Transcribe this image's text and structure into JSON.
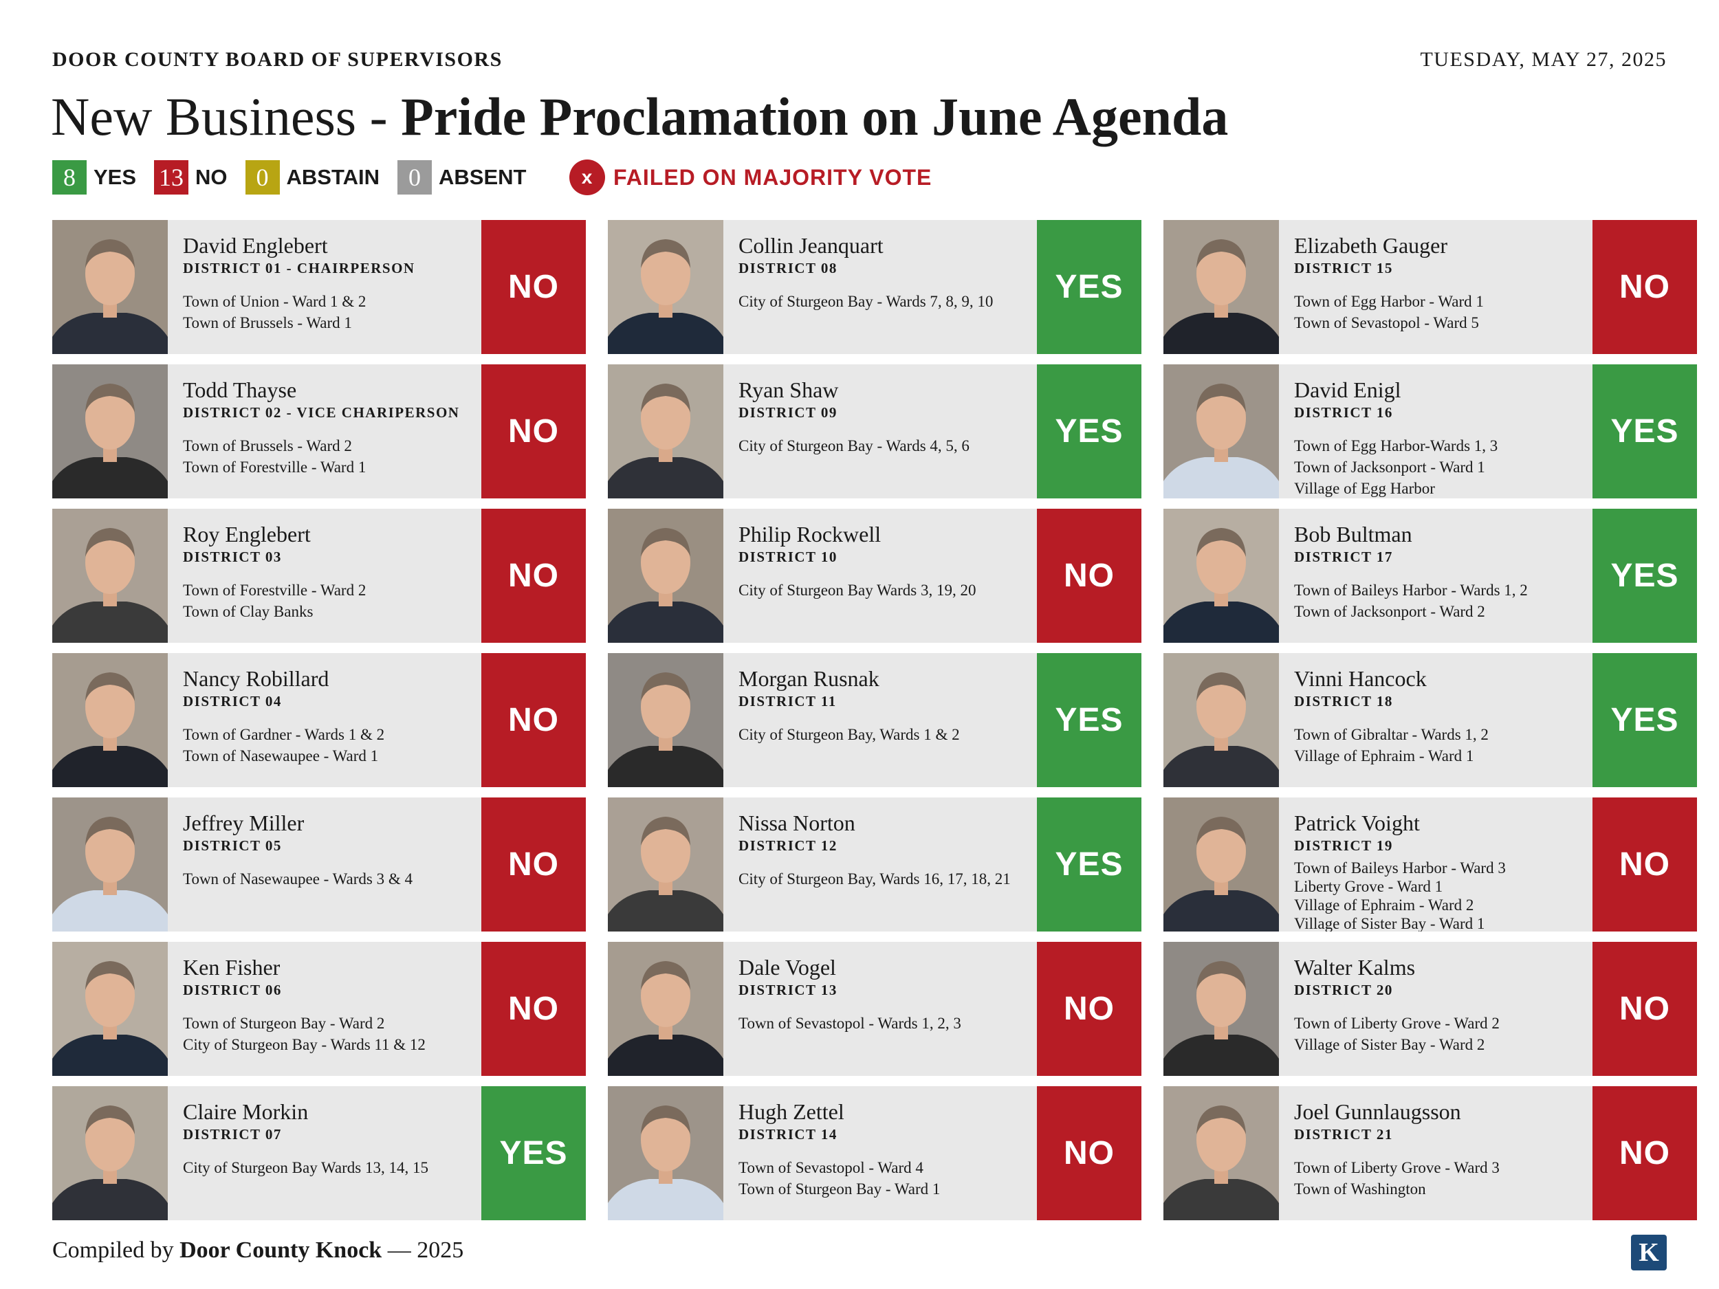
{
  "header": {
    "org": "DOOR COUNTY BOARD OF SUPERVISORS",
    "date": "TUESDAY, MAY 27, 2025",
    "title_lead": "New Business - ",
    "title_main": "Pride Proclamation on June Agenda"
  },
  "tally": {
    "yes": {
      "count": "8",
      "label": "YES"
    },
    "no": {
      "count": "13",
      "label": "NO"
    },
    "abstain": {
      "count": "0",
      "label": "ABSTAIN"
    },
    "absent": {
      "count": "0",
      "label": "ABSENT"
    }
  },
  "result": {
    "icon": "x",
    "text": "FAILED ON MAJORITY VOTE"
  },
  "colors": {
    "yes": "#3a9a44",
    "no": "#b71c25",
    "abstain": "#b8a513",
    "absent": "#9b9b9b"
  },
  "members": [
    {
      "name": "David Englebert",
      "district": "DISTRICT 01 - CHAIRPERSON",
      "areas": [
        "Town of Union - Ward 1 & 2",
        "Town of Brussels - Ward 1"
      ],
      "vote": "NO"
    },
    {
      "name": "Collin Jeanquart",
      "district": "DISTRICT 08",
      "areas": [
        "City of Sturgeon Bay - Wards 7, 8, 9, 10"
      ],
      "vote": "YES"
    },
    {
      "name": "Elizabeth Gauger",
      "district": "DISTRICT 15",
      "areas": [
        "Town of Egg Harbor - Ward 1",
        "Town of Sevastopol - Ward 5"
      ],
      "vote": "NO"
    },
    {
      "name": "Todd Thayse",
      "district": "DISTRICT 02 - VICE CHARIPERSON",
      "areas": [
        "Town of Brussels - Ward 2",
        "Town of Forestville - Ward 1"
      ],
      "vote": "NO"
    },
    {
      "name": "Ryan Shaw",
      "district": "DISTRICT 09",
      "areas": [
        "City of Sturgeon Bay - Wards 4, 5, 6"
      ],
      "vote": "YES"
    },
    {
      "name": "David Enigl",
      "district": "DISTRICT 16",
      "areas": [
        "Town of Egg Harbor-Wards 1, 3",
        "Town of Jacksonport - Ward 1",
        "Village of Egg Harbor"
      ],
      "vote": "YES"
    },
    {
      "name": "Roy Englebert",
      "district": "DISTRICT 03",
      "areas": [
        "Town of Forestville - Ward 2",
        "Town of Clay Banks"
      ],
      "vote": "NO"
    },
    {
      "name": "Philip Rockwell",
      "district": "DISTRICT 10",
      "areas": [
        "City of Sturgeon Bay Wards 3, 19, 20"
      ],
      "vote": "NO"
    },
    {
      "name": "Bob Bultman",
      "district": "DISTRICT 17",
      "areas": [
        "Town of Baileys Harbor - Wards 1, 2",
        "Town of  Jacksonport - Ward 2"
      ],
      "vote": "YES"
    },
    {
      "name": "Nancy Robillard",
      "district": "DISTRICT 04",
      "areas": [
        "Town of Gardner - Wards 1 & 2",
        "Town of Nasewaupee - Ward 1"
      ],
      "vote": "NO"
    },
    {
      "name": "Morgan Rusnak",
      "district": "DISTRICT 11",
      "areas": [
        "City of Sturgeon Bay, Wards 1 & 2"
      ],
      "vote": "YES"
    },
    {
      "name": "Vinni Hancock",
      "district": "DISTRICT 18",
      "areas": [
        "Town of Gibraltar - Wards 1, 2",
        "Village of Ephraim - Ward 1"
      ],
      "vote": "YES"
    },
    {
      "name": "Jeffrey Miller",
      "district": "DISTRICT 05",
      "areas": [
        "Town of Nasewaupee - Wards  3 & 4"
      ],
      "vote": "NO"
    },
    {
      "name": "Nissa Norton",
      "district": "DISTRICT 12",
      "areas": [
        "City of Sturgeon Bay, Wards 16, 17, 18, 21"
      ],
      "vote": "YES"
    },
    {
      "name": "Patrick Voight",
      "district": "DISTRICT 19",
      "areas": [
        "Town of Baileys Harbor - Ward 3",
        "Liberty Grove - Ward 1",
        "Village of Ephraim - Ward 2",
        "Village of Sister Bay - Ward 1"
      ],
      "vote": "NO"
    },
    {
      "name": "Ken Fisher",
      "district": "DISTRICT 06",
      "areas": [
        "Town of Sturgeon Bay - Ward 2",
        "City of Sturgeon Bay - Wards 11 & 12"
      ],
      "vote": "NO"
    },
    {
      "name": "Dale Vogel",
      "district": "DISTRICT 13",
      "areas": [
        "Town of Sevastopol - Wards 1, 2, 3"
      ],
      "vote": "NO"
    },
    {
      "name": "Walter Kalms",
      "district": "DISTRICT 20",
      "areas": [
        "Town of Liberty Grove - Ward 2",
        "Village of Sister Bay - Ward 2"
      ],
      "vote": "NO"
    },
    {
      "name": "Claire Morkin",
      "district": "DISTRICT 07",
      "areas": [
        "City of Sturgeon Bay Wards 13, 14, 15"
      ],
      "vote": "YES"
    },
    {
      "name": "Hugh Zettel",
      "district": "DISTRICT 14",
      "areas": [
        "Town of Sevastopol - Ward 4",
        "Town of Sturgeon Bay - Ward 1"
      ],
      "vote": "NO"
    },
    {
      "name": "Joel Gunnlaugsson",
      "district": "DISTRICT 21",
      "areas": [
        "Town of Liberty Grove - Ward 3",
        "Town of Washington"
      ],
      "vote": "NO"
    }
  ],
  "footer": {
    "prefix": "Compiled by ",
    "source": "Door County Knock",
    "suffix": " — 2025"
  },
  "logo": {
    "letter": "K",
    "icon": "knock-logo-icon"
  }
}
